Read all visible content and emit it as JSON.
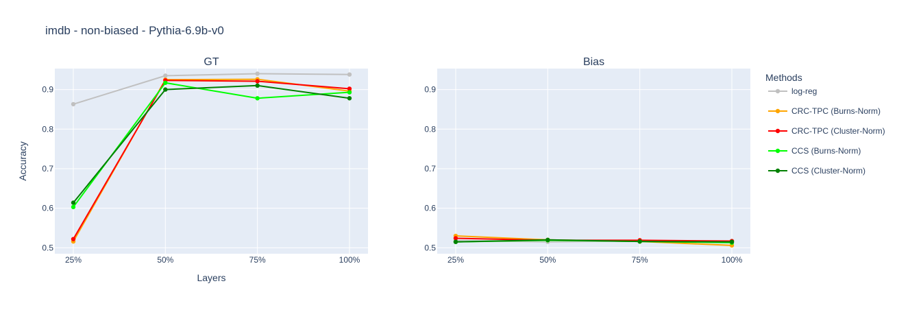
{
  "figure": {
    "title": "imdb - non-biased - Pythia-6.9b-v0",
    "legend_title": "Methods",
    "legend_placement": "right"
  },
  "chart_data": [
    {
      "type": "line",
      "title": "GT",
      "xlabel": "Layers",
      "ylabel": "Accuracy",
      "categories": [
        "25%",
        "50%",
        "75%",
        "100%"
      ],
      "ylim": [
        0.485,
        0.953
      ],
      "yticks": [
        0.5,
        0.6,
        0.7,
        0.8,
        0.9
      ],
      "grid": true,
      "series": [
        {
          "name": "log-reg",
          "color": "#c0c0c0",
          "values": [
            0.863,
            0.935,
            0.94,
            0.938
          ]
        },
        {
          "name": "CRC-TPC (Burns-Norm)",
          "color": "#ffa500",
          "values": [
            0.516,
            0.925,
            0.926,
            0.896
          ]
        },
        {
          "name": "CRC-TPC (Cluster-Norm)",
          "color": "#ff0000",
          "values": [
            0.522,
            0.923,
            0.921,
            0.902
          ]
        },
        {
          "name": "CCS (Burns-Norm)",
          "color": "#00ff00",
          "values": [
            0.603,
            0.917,
            0.878,
            0.893
          ]
        },
        {
          "name": "CCS (Cluster-Norm)",
          "color": "#008000",
          "values": [
            0.614,
            0.9,
            0.91,
            0.878
          ]
        }
      ]
    },
    {
      "type": "line",
      "title": "Bias",
      "xlabel": "",
      "ylabel": "",
      "categories": [
        "25%",
        "50%",
        "75%",
        "100%"
      ],
      "ylim": [
        0.485,
        0.953
      ],
      "yticks": [
        0.5,
        0.6,
        0.7,
        0.8,
        0.9
      ],
      "grid": true,
      "series": [
        {
          "name": "log-reg",
          "color": "#c0c0c0",
          "values": [
            0.518,
            0.515,
            0.517,
            0.516
          ]
        },
        {
          "name": "CRC-TPC (Burns-Norm)",
          "color": "#ffa500",
          "values": [
            0.53,
            0.52,
            0.516,
            0.506
          ]
        },
        {
          "name": "CRC-TPC (Cluster-Norm)",
          "color": "#ff0000",
          "values": [
            0.524,
            0.519,
            0.519,
            0.517
          ]
        },
        {
          "name": "CCS (Burns-Norm)",
          "color": "#00ff00",
          "values": [
            0.515,
            0.519,
            0.516,
            0.513
          ]
        },
        {
          "name": "CCS (Cluster-Norm)",
          "color": "#008000",
          "values": [
            0.515,
            0.52,
            0.516,
            0.515
          ]
        }
      ]
    }
  ]
}
